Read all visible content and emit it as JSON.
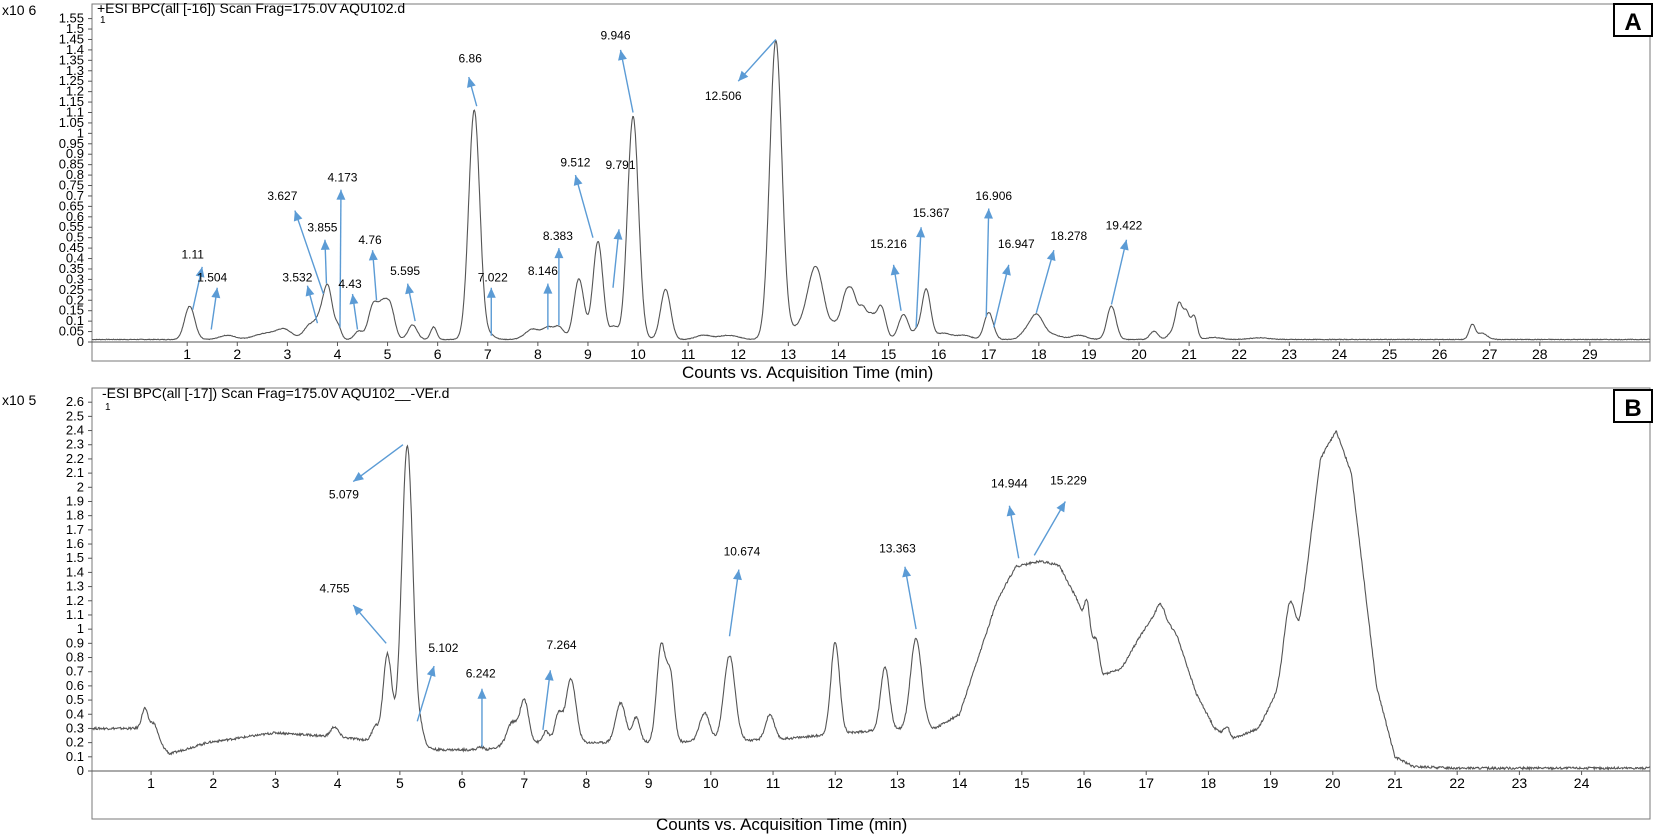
{
  "chart_data": [
    {
      "type": "line",
      "panel_label": "A",
      "header": "+ESI BPC(all [-16]) Scan Frag=175.0V AQU102.d",
      "y_multiplier": "x10 6",
      "y_unit_mark": "1",
      "xlabel": "Counts vs. Acquisition Time (min)",
      "xlim": [
        -0.9,
        30.2
      ],
      "ylim": [
        0,
        1.62
      ],
      "x_ticks": [
        1,
        2,
        3,
        4,
        5,
        6,
        7,
        8,
        9,
        10,
        11,
        12,
        13,
        14,
        15,
        16,
        17,
        18,
        19,
        20,
        21,
        22,
        23,
        24,
        25,
        26,
        27,
        28,
        29
      ],
      "y_ticks": [
        "0",
        "0.05",
        "0.1",
        "0.15",
        "0.2",
        "0.25",
        "0.3",
        "0.35",
        "0.4",
        "0.45",
        "0.5",
        "0.55",
        "0.6",
        "0.65",
        "0.7",
        "0.75",
        "0.8",
        "0.85",
        "0.9",
        "0.95",
        "1",
        "1.05",
        "1.1",
        "1.15",
        "1.2",
        "1.25",
        "1.3",
        "1.35",
        "1.4",
        "1.45",
        "1.5",
        "1.55"
      ],
      "baseline": 0.012,
      "peaks": [
        [
          1.05,
          0.16,
          0.1
        ],
        [
          1.8,
          0.02,
          0.15
        ],
        [
          2.6,
          0.03,
          0.25
        ],
        [
          2.95,
          0.04,
          0.15
        ],
        [
          3.45,
          0.07,
          0.12
        ],
        [
          3.62,
          0.05,
          0.08
        ],
        [
          3.8,
          0.26,
          0.1
        ],
        [
          4.02,
          0.05,
          0.06
        ],
        [
          4.42,
          0.04,
          0.08
        ],
        [
          4.72,
          0.17,
          0.1
        ],
        [
          4.9,
          0.12,
          0.08
        ],
        [
          5.05,
          0.16,
          0.09
        ],
        [
          5.5,
          0.07,
          0.09
        ],
        [
          5.92,
          0.06,
          0.06
        ],
        [
          6.73,
          1.1,
          0.11
        ],
        [
          7.05,
          0.02,
          0.1
        ],
        [
          7.9,
          0.05,
          0.15
        ],
        [
          8.2,
          0.05,
          0.1
        ],
        [
          8.42,
          0.06,
          0.1
        ],
        [
          8.82,
          0.29,
          0.1
        ],
        [
          9.2,
          0.47,
          0.1
        ],
        [
          9.52,
          0.06,
          0.08
        ],
        [
          9.9,
          1.07,
          0.11
        ],
        [
          10.55,
          0.24,
          0.1
        ],
        [
          11.3,
          0.02,
          0.15
        ],
        [
          11.8,
          0.02,
          0.2
        ],
        [
          12.75,
          1.43,
          0.12
        ],
        [
          13.2,
          0.05,
          0.2
        ],
        [
          13.55,
          0.34,
          0.16
        ],
        [
          13.95,
          0.06,
          0.1
        ],
        [
          14.15,
          0.2,
          0.09
        ],
        [
          14.3,
          0.17,
          0.08
        ],
        [
          14.48,
          0.14,
          0.08
        ],
        [
          14.65,
          0.1,
          0.08
        ],
        [
          14.85,
          0.16,
          0.09
        ],
        [
          15.3,
          0.12,
          0.1
        ],
        [
          15.55,
          0.03,
          0.06
        ],
        [
          15.75,
          0.24,
          0.09
        ],
        [
          16.1,
          0.03,
          0.15
        ],
        [
          16.5,
          0.02,
          0.15
        ],
        [
          17.0,
          0.13,
          0.09
        ],
        [
          17.7,
          0.02,
          0.1
        ],
        [
          17.95,
          0.12,
          0.14
        ],
        [
          18.3,
          0.02,
          0.15
        ],
        [
          18.8,
          0.02,
          0.15
        ],
        [
          19.45,
          0.16,
          0.09
        ],
        [
          20.3,
          0.04,
          0.08
        ],
        [
          20.65,
          0.03,
          0.08
        ],
        [
          20.8,
          0.17,
          0.07
        ],
        [
          20.95,
          0.12,
          0.06
        ],
        [
          21.1,
          0.11,
          0.06
        ],
        [
          21.5,
          0.01,
          0.15
        ],
        [
          22.4,
          0.008,
          0.2
        ],
        [
          26.65,
          0.07,
          0.06
        ],
        [
          26.85,
          0.03,
          0.1
        ]
      ],
      "annotations": [
        {
          "text": "1.11",
          "x": 1.11,
          "y": 0.155,
          "tx": 1.3,
          "ty": 0.36
        },
        {
          "text": "1.504",
          "x": 1.48,
          "y": 0.06,
          "tx": 1.6,
          "ty": 0.26
        },
        {
          "text": "3.532",
          "x": 3.6,
          "y": 0.09,
          "tx": 3.4,
          "ty": 0.27
        },
        {
          "text": "3.627",
          "x": 3.72,
          "y": 0.23,
          "tx": 3.15,
          "ty": 0.63
        },
        {
          "text": "3.855",
          "x": 3.78,
          "y": 0.28,
          "tx": 3.75,
          "ty": 0.49
        },
        {
          "text": "4.173",
          "x": 4.05,
          "y": 0.07,
          "tx": 4.07,
          "ty": 0.73
        },
        {
          "text": "4.43",
          "x": 4.4,
          "y": 0.06,
          "tx": 4.3,
          "ty": 0.23
        },
        {
          "text": "4.76",
          "x": 4.78,
          "y": 0.2,
          "tx": 4.7,
          "ty": 0.44
        },
        {
          "text": "5.595",
          "x": 5.55,
          "y": 0.1,
          "tx": 5.4,
          "ty": 0.28
        },
        {
          "text": "6.86",
          "x": 6.78,
          "y": 1.13,
          "tx": 6.62,
          "ty": 1.27
        },
        {
          "text": "7.022",
          "x": 7.07,
          "y": 0.03,
          "tx": 7.07,
          "ty": 0.26
        },
        {
          "text": "8.146",
          "x": 8.2,
          "y": 0.06,
          "tx": 8.2,
          "ty": 0.28
        },
        {
          "text": "8.383",
          "x": 8.42,
          "y": 0.08,
          "tx": 8.42,
          "ty": 0.45
        },
        {
          "text": "9.512",
          "x": 9.1,
          "y": 0.5,
          "tx": 8.75,
          "ty": 0.8
        },
        {
          "text": "9.791",
          "x": 9.5,
          "y": 0.26,
          "tx": 9.62,
          "ty": 0.54
        },
        {
          "text": "9.946",
          "x": 9.9,
          "y": 1.1,
          "tx": 9.65,
          "ty": 1.4
        },
        {
          "text": "12.506",
          "x": 12.75,
          "y": 1.45,
          "tx": 12.0,
          "ty": 1.25
        },
        {
          "text": "15.216",
          "x": 15.25,
          "y": 0.15,
          "tx": 15.1,
          "ty": 0.37
        },
        {
          "text": "15.367",
          "x": 15.55,
          "y": 0.07,
          "tx": 15.65,
          "ty": 0.55
        },
        {
          "text": "16.906",
          "x": 16.95,
          "y": 0.12,
          "tx": 17.0,
          "ty": 0.64
        },
        {
          "text": "16.947",
          "x": 17.1,
          "y": 0.07,
          "tx": 17.4,
          "ty": 0.37
        },
        {
          "text": "18.278",
          "x": 17.95,
          "y": 0.14,
          "tx": 18.3,
          "ty": 0.44
        },
        {
          "text": "19.422",
          "x": 19.45,
          "y": 0.18,
          "tx": 19.75,
          "ty": 0.49
        }
      ],
      "label_positions": [
        {
          "text": "1.11",
          "x": 1.11,
          "y": 0.4
        },
        {
          "text": "1.504",
          "x": 1.5,
          "y": 0.29
        },
        {
          "text": "3.532",
          "x": 3.2,
          "y": 0.29
        },
        {
          "text": "3.627",
          "x": 2.9,
          "y": 0.68
        },
        {
          "text": "3.855",
          "x": 3.7,
          "y": 0.53
        },
        {
          "text": "4.173",
          "x": 4.1,
          "y": 0.77
        },
        {
          "text": "4.43",
          "x": 4.25,
          "y": 0.26
        },
        {
          "text": "4.76",
          "x": 4.65,
          "y": 0.47
        },
        {
          "text": "5.595",
          "x": 5.35,
          "y": 0.32
        },
        {
          "text": "6.86",
          "x": 6.65,
          "y": 1.34
        },
        {
          "text": "7.022",
          "x": 7.1,
          "y": 0.29
        },
        {
          "text": "8.146",
          "x": 8.1,
          "y": 0.32
        },
        {
          "text": "8.383",
          "x": 8.4,
          "y": 0.49
        },
        {
          "text": "9.512",
          "x": 8.75,
          "y": 0.84
        },
        {
          "text": "9.791",
          "x": 9.65,
          "y": 0.83
        },
        {
          "text": "9.946",
          "x": 9.55,
          "y": 1.45
        },
        {
          "text": "12.506",
          "x": 11.7,
          "y": 1.16
        },
        {
          "text": "15.216",
          "x": 15.0,
          "y": 0.45
        },
        {
          "text": "15.367",
          "x": 15.85,
          "y": 0.6
        },
        {
          "text": "16.906",
          "x": 17.1,
          "y": 0.68
        },
        {
          "text": "16.947",
          "x": 17.55,
          "y": 0.45
        },
        {
          "text": "18.278",
          "x": 18.6,
          "y": 0.49
        },
        {
          "text": "19.422",
          "x": 19.7,
          "y": 0.54
        }
      ]
    },
    {
      "type": "line",
      "panel_label": "B",
      "header": "-ESI BPC(all [-17]) Scan Frag=175.0V AQU102__-VEr.d",
      "y_multiplier": "x10 5",
      "y_unit_mark": "1",
      "xlabel": "Counts vs. Acquisition Time (min)",
      "xlim": [
        0.05,
        25.1
      ],
      "ylim": [
        0,
        2.7
      ],
      "x_ticks": [
        1,
        2,
        3,
        4,
        5,
        6,
        7,
        8,
        9,
        10,
        11,
        12,
        13,
        14,
        15,
        16,
        17,
        18,
        19,
        20,
        21,
        22,
        23,
        24
      ],
      "y_ticks": [
        "0",
        "0.1",
        "0.2",
        "0.3",
        "0.4",
        "0.5",
        "0.6",
        "0.7",
        "0.8",
        "0.9",
        "1",
        "1.1",
        "1.2",
        "1.3",
        "1.4",
        "1.5",
        "1.6",
        "1.7",
        "1.8",
        "1.9",
        "2",
        "2.1",
        "2.2",
        "2.3",
        "2.4",
        "2.5",
        "2.6"
      ],
      "baseline_segments": [
        [
          0.05,
          0.3
        ],
        [
          0.9,
          0.3
        ],
        [
          1.3,
          0.12
        ],
        [
          1.9,
          0.2
        ],
        [
          3.0,
          0.27
        ],
        [
          4.0,
          0.24
        ],
        [
          5.3,
          0.18
        ],
        [
          5.6,
          0.15
        ],
        [
          6.4,
          0.15
        ],
        [
          6.9,
          0.2
        ],
        [
          9.0,
          0.2
        ],
        [
          11.0,
          0.22
        ],
        [
          12.5,
          0.28
        ],
        [
          13.6,
          0.3
        ],
        [
          14.0,
          0.4
        ],
        [
          14.3,
          0.8
        ],
        [
          14.6,
          1.2
        ],
        [
          14.9,
          1.44
        ],
        [
          15.3,
          1.48
        ],
        [
          15.6,
          1.45
        ],
        [
          15.9,
          1.2
        ],
        [
          16.3,
          0.68
        ],
        [
          16.6,
          0.72
        ],
        [
          16.9,
          0.95
        ],
        [
          17.2,
          1.15
        ],
        [
          17.5,
          0.95
        ],
        [
          17.8,
          0.55
        ],
        [
          18.1,
          0.3
        ],
        [
          18.4,
          0.23
        ],
        [
          18.8,
          0.3
        ],
        [
          19.1,
          0.55
        ],
        [
          19.45,
          0.95
        ],
        [
          19.8,
          2.2
        ],
        [
          20.05,
          2.4
        ],
        [
          20.3,
          2.1
        ],
        [
          20.7,
          0.6
        ],
        [
          21.0,
          0.1
        ],
        [
          21.3,
          0.03
        ],
        [
          22.0,
          0.02
        ],
        [
          25.1,
          0.02
        ]
      ],
      "peaks": [
        [
          0.9,
          0.14,
          0.05
        ],
        [
          1.05,
          0.1,
          0.06
        ],
        [
          3.95,
          0.07,
          0.06
        ],
        [
          4.6,
          0.1,
          0.05
        ],
        [
          4.8,
          0.62,
          0.07
        ],
        [
          5.12,
          2.1,
          0.09
        ],
        [
          5.35,
          0.08,
          0.05
        ],
        [
          6.3,
          0.02,
          0.05
        ],
        [
          6.8,
          0.15,
          0.08
        ],
        [
          7.0,
          0.3,
          0.07
        ],
        [
          7.35,
          0.08,
          0.05
        ],
        [
          7.55,
          0.2,
          0.06
        ],
        [
          7.75,
          0.45,
          0.08
        ],
        [
          8.55,
          0.28,
          0.08
        ],
        [
          8.8,
          0.18,
          0.06
        ],
        [
          9.2,
          0.68,
          0.07
        ],
        [
          9.35,
          0.45,
          0.06
        ],
        [
          9.9,
          0.2,
          0.08
        ],
        [
          10.3,
          0.6,
          0.09
        ],
        [
          10.95,
          0.18,
          0.07
        ],
        [
          12.0,
          0.65,
          0.07
        ],
        [
          12.8,
          0.45,
          0.07
        ],
        [
          13.3,
          0.64,
          0.09
        ],
        [
          16.05,
          0.2,
          0.04
        ],
        [
          16.2,
          0.12,
          0.04
        ],
        [
          17.25,
          0.05,
          0.05
        ],
        [
          18.3,
          0.06,
          0.04
        ],
        [
          19.3,
          0.4,
          0.09
        ]
      ],
      "annotations": [
        {
          "text": "5.079",
          "x": 5.05,
          "y": 2.3,
          "tx": 4.25,
          "ty": 2.04
        },
        {
          "text": "4.755",
          "x": 4.78,
          "y": 0.9,
          "tx": 4.25,
          "ty": 1.17
        },
        {
          "text": "5.102",
          "x": 5.28,
          "y": 0.35,
          "tx": 5.55,
          "ty": 0.74
        },
        {
          "text": "6.242",
          "x": 6.32,
          "y": 0.17,
          "tx": 6.32,
          "ty": 0.58
        },
        {
          "text": "7.264",
          "x": 7.3,
          "y": 0.29,
          "tx": 7.42,
          "ty": 0.71
        },
        {
          "text": "10.674",
          "x": 10.3,
          "y": 0.95,
          "tx": 10.45,
          "ty": 1.42
        },
        {
          "text": "13.363",
          "x": 13.3,
          "y": 1.0,
          "tx": 13.12,
          "ty": 1.44
        },
        {
          "text": "14.944",
          "x": 14.95,
          "y": 1.5,
          "tx": 14.8,
          "ty": 1.87
        },
        {
          "text": "15.229",
          "x": 15.2,
          "y": 1.52,
          "tx": 15.7,
          "ty": 1.9
        }
      ],
      "label_positions": [
        {
          "text": "5.079",
          "x": 4.1,
          "y": 1.92
        },
        {
          "text": "4.755",
          "x": 3.95,
          "y": 1.26
        },
        {
          "text": "5.102",
          "x": 5.7,
          "y": 0.84
        },
        {
          "text": "6.242",
          "x": 6.3,
          "y": 0.66
        },
        {
          "text": "7.264",
          "x": 7.6,
          "y": 0.86
        },
        {
          "text": "10.674",
          "x": 10.5,
          "y": 1.52
        },
        {
          "text": "13.363",
          "x": 13.0,
          "y": 1.54
        },
        {
          "text": "14.944",
          "x": 14.8,
          "y": 2.0
        },
        {
          "text": "15.229",
          "x": 15.75,
          "y": 2.02
        }
      ]
    }
  ]
}
